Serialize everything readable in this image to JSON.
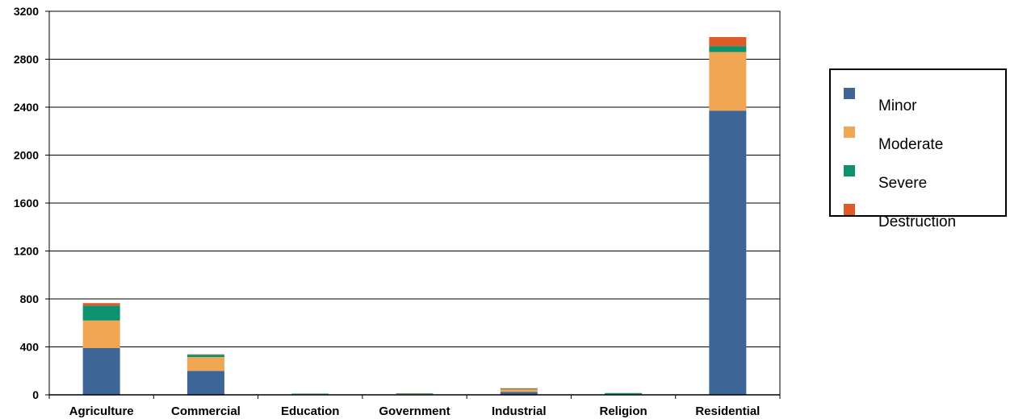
{
  "chart_data": {
    "type": "bar",
    "stacked": true,
    "categories": [
      "Agriculture",
      "Commercial",
      "Education",
      "Government",
      "Industrial",
      "Religion",
      "Residential"
    ],
    "series": [
      {
        "name": "Minor",
        "color": "#3d6697",
        "values": [
          390,
          200,
          0,
          0,
          25,
          0,
          2370
        ]
      },
      {
        "name": "Moderate",
        "color": "#f0a653",
        "values": [
          230,
          115,
          5,
          8,
          20,
          5,
          490
        ]
      },
      {
        "name": "Severe",
        "color": "#0d9270",
        "values": [
          125,
          20,
          5,
          5,
          5,
          10,
          50
        ]
      },
      {
        "name": "Destruction",
        "color": "#e05a25",
        "values": [
          20,
          3,
          0,
          0,
          5,
          0,
          75
        ]
      }
    ],
    "ylim": [
      0,
      3200
    ],
    "yticks": [
      0,
      400,
      800,
      1200,
      1600,
      2000,
      2400,
      2800,
      3200
    ],
    "grid": true,
    "legend": "right"
  }
}
